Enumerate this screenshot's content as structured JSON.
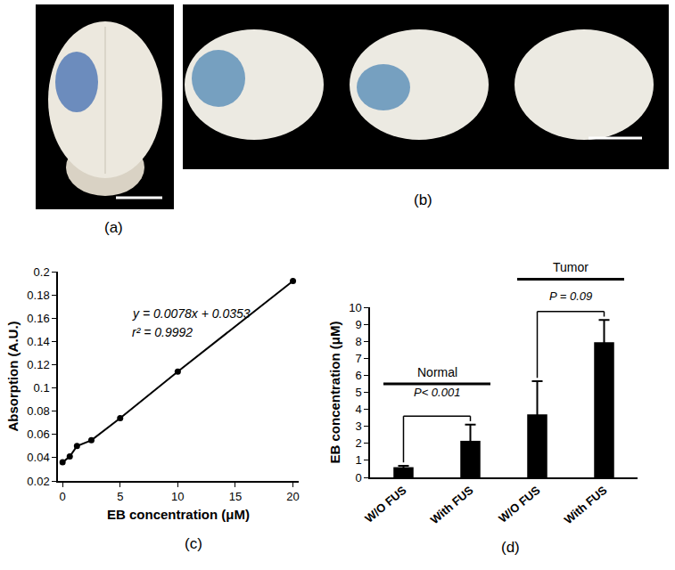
{
  "photo_panel_labels": [
    "(a)",
    "(b)"
  ],
  "chart_data": [
    {
      "type": "line",
      "panel_label": "(c)",
      "marker": "circle",
      "color": "#000000",
      "x": [
        0,
        0.625,
        1.25,
        2.5,
        5,
        10,
        20
      ],
      "values": [
        0.036,
        0.041,
        0.05,
        0.055,
        0.074,
        0.114,
        0.192
      ],
      "xlabel": "EB concentration (μM)",
      "ylabel": "Absorption (A.U.)",
      "xlim": [
        -0.4,
        20.5
      ],
      "ylim": [
        0.02,
        0.2
      ],
      "xticks": [
        0,
        5,
        10,
        15,
        20
      ],
      "yticks": [
        0.02,
        0.04,
        0.06,
        0.08,
        0.1,
        0.12,
        0.14,
        0.16,
        0.18,
        0.2
      ],
      "annotations": [
        "y = 0.0078x + 0.0353",
        "r² = 0.9992"
      ],
      "grid": false
    },
    {
      "type": "bar",
      "panel_label": "(d)",
      "color": "#000000",
      "categories": [
        "W/O FUS",
        "With FUS",
        "W/O FUS",
        "With FUS"
      ],
      "values": [
        0.6,
        2.15,
        3.7,
        7.95
      ],
      "errors": [
        0.08,
        0.95,
        1.95,
        1.3
      ],
      "ylabel": "EB concentration (μM)",
      "ylim": [
        0,
        10
      ],
      "yticks": [
        0,
        1,
        2,
        3,
        4,
        5,
        6,
        7,
        8,
        9,
        10
      ],
      "groups": [
        "Normal",
        "Tumor"
      ],
      "p_values": [
        "P< 0.001",
        "P = 0.09"
      ],
      "grid": false
    }
  ]
}
